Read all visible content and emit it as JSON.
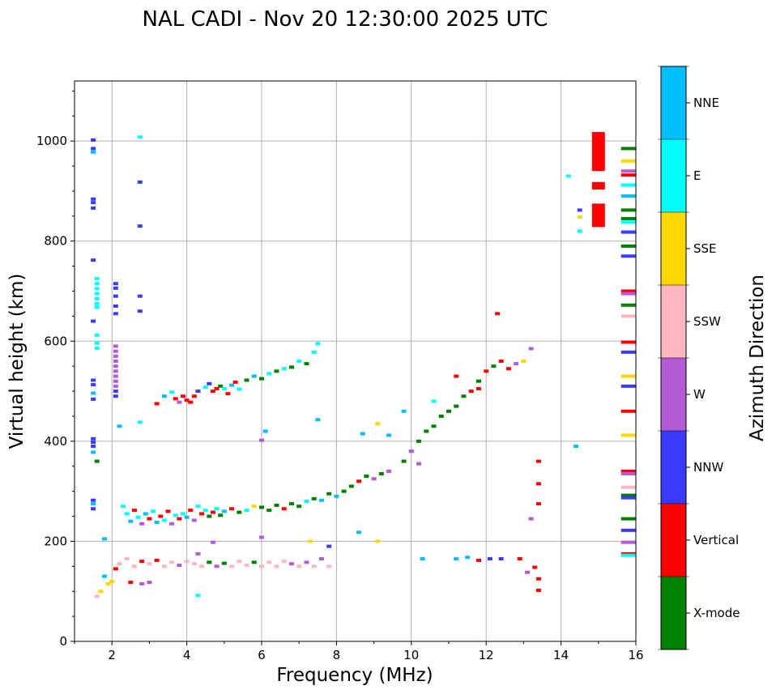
{
  "chart_data": {
    "type": "scatter",
    "title": "NAL CADI - Nov 20 12:30:00 2025 UTC",
    "xlabel": "Frequency (MHz)",
    "ylabel": "Virtual height (km)",
    "xlim": [
      1,
      16
    ],
    "ylim": [
      0,
      1120
    ],
    "xticks": [
      2,
      4,
      6,
      8,
      10,
      12,
      14,
      16
    ],
    "yticks": [
      0,
      200,
      400,
      600,
      800,
      1000
    ],
    "grid": true,
    "colorbar": {
      "label": "Azimuth Direction",
      "categories": [
        {
          "name": "X-mode",
          "color": "#008000"
        },
        {
          "name": "Vertical",
          "color": "#ff0000"
        },
        {
          "name": "NNW",
          "color": "#3a3aff"
        },
        {
          "name": "W",
          "color": "#b45ad6"
        },
        {
          "name": "SSW",
          "color": "#ffb6c1"
        },
        {
          "name": "SSE",
          "color": "#ffd700"
        },
        {
          "name": "E",
          "color": "#00ffff"
        },
        {
          "name": "NNE",
          "color": "#00bfff"
        }
      ]
    },
    "points": [
      [
        1.5,
        1002,
        "NNW"
      ],
      [
        1.5,
        985,
        "NNW"
      ],
      [
        1.5,
        978,
        "NNE"
      ],
      [
        1.5,
        884,
        "NNW"
      ],
      [
        1.5,
        877,
        "NNW"
      ],
      [
        1.5,
        866,
        "NNW"
      ],
      [
        1.5,
        762,
        "NNW"
      ],
      [
        1.6,
        725,
        "E"
      ],
      [
        1.6,
        715,
        "E"
      ],
      [
        1.6,
        705,
        "E"
      ],
      [
        1.6,
        695,
        "E"
      ],
      [
        1.6,
        685,
        "E"
      ],
      [
        1.6,
        675,
        "E"
      ],
      [
        1.6,
        668,
        "E"
      ],
      [
        1.5,
        640,
        "NNW"
      ],
      [
        1.6,
        612,
        "E"
      ],
      [
        1.6,
        596,
        "E"
      ],
      [
        1.6,
        586,
        "E"
      ],
      [
        1.5,
        522,
        "NNW"
      ],
      [
        1.5,
        513,
        "NNW"
      ],
      [
        1.5,
        496,
        "NNE"
      ],
      [
        1.5,
        484,
        "NNW"
      ],
      [
        1.5,
        405,
        "NNW"
      ],
      [
        1.5,
        398,
        "NNW"
      ],
      [
        1.5,
        390,
        "NNW"
      ],
      [
        1.5,
        378,
        "NNE"
      ],
      [
        1.6,
        360,
        "X-mode"
      ],
      [
        1.5,
        282,
        "NNW"
      ],
      [
        1.5,
        275,
        "NNE"
      ],
      [
        1.5,
        265,
        "NNW"
      ],
      [
        2.1,
        715,
        "NNW"
      ],
      [
        2.1,
        706,
        "NNW"
      ],
      [
        2.1,
        690,
        "NNW"
      ],
      [
        2.1,
        670,
        "NNW"
      ],
      [
        2.1,
        655,
        "NNW"
      ],
      [
        2.1,
        590,
        "W"
      ],
      [
        2.1,
        580,
        "W"
      ],
      [
        2.1,
        570,
        "W"
      ],
      [
        2.1,
        560,
        "W"
      ],
      [
        2.1,
        550,
        "W"
      ],
      [
        2.1,
        540,
        "W"
      ],
      [
        2.1,
        530,
        "W"
      ],
      [
        2.1,
        520,
        "W"
      ],
      [
        2.1,
        510,
        "W"
      ],
      [
        2.1,
        500,
        "NNW"
      ],
      [
        2.1,
        490,
        "NNW"
      ],
      [
        2.2,
        430,
        "NNE"
      ],
      [
        2.75,
        1008,
        "E"
      ],
      [
        2.75,
        918,
        "NNW"
      ],
      [
        2.75,
        830,
        "NNW"
      ],
      [
        2.75,
        690,
        "NNW"
      ],
      [
        2.75,
        660,
        "NNW"
      ],
      [
        2.75,
        438,
        "E"
      ],
      [
        3.2,
        475,
        "Vertical"
      ],
      [
        3.4,
        490,
        "NNE"
      ],
      [
        3.6,
        498,
        "E"
      ],
      [
        3.7,
        485,
        "Vertical"
      ],
      [
        3.8,
        478,
        "W"
      ],
      [
        3.9,
        490,
        "Vertical"
      ],
      [
        4.0,
        482,
        "Vertical"
      ],
      [
        4.1,
        478,
        "Vertical"
      ],
      [
        4.2,
        490,
        "Vertical"
      ],
      [
        4.3,
        500,
        "NNW"
      ],
      [
        4.5,
        508,
        "E"
      ],
      [
        4.6,
        515,
        "NNW"
      ],
      [
        4.7,
        500,
        "Vertical"
      ],
      [
        4.8,
        505,
        "Vertical"
      ],
      [
        4.9,
        510,
        "X-mode"
      ],
      [
        5.0,
        505,
        "E"
      ],
      [
        5.1,
        495,
        "Vertical"
      ],
      [
        5.2,
        512,
        "NNE"
      ],
      [
        5.3,
        518,
        "Vertical"
      ],
      [
        5.4,
        504,
        "E"
      ],
      [
        5.6,
        522,
        "X-mode"
      ],
      [
        5.8,
        530,
        "NNE"
      ],
      [
        6.0,
        525,
        "X-mode"
      ],
      [
        6.2,
        535,
        "E"
      ],
      [
        6.4,
        540,
        "X-mode"
      ],
      [
        6.6,
        545,
        "E"
      ],
      [
        6.8,
        548,
        "X-mode"
      ],
      [
        7.0,
        560,
        "E"
      ],
      [
        7.2,
        555,
        "X-mode"
      ],
      [
        7.4,
        578,
        "E"
      ],
      [
        7.5,
        595,
        "E"
      ],
      [
        6.1,
        420,
        "NNE"
      ],
      [
        6.0,
        402,
        "W"
      ],
      [
        7.5,
        443,
        "NNE"
      ],
      [
        2.3,
        270,
        "E"
      ],
      [
        2.4,
        255,
        "E"
      ],
      [
        2.5,
        240,
        "NNE"
      ],
      [
        2.6,
        262,
        "Vertical"
      ],
      [
        2.7,
        248,
        "E"
      ],
      [
        2.8,
        235,
        "W"
      ],
      [
        2.9,
        255,
        "NNE"
      ],
      [
        3.0,
        245,
        "Vertical"
      ],
      [
        3.1,
        260,
        "E"
      ],
      [
        3.2,
        238,
        "NNE"
      ],
      [
        3.3,
        250,
        "Vertical"
      ],
      [
        3.4,
        242,
        "E"
      ],
      [
        3.5,
        260,
        "Vertical"
      ],
      [
        3.6,
        235,
        "W"
      ],
      [
        3.7,
        252,
        "E"
      ],
      [
        3.8,
        245,
        "Vertical"
      ],
      [
        3.9,
        255,
        "E"
      ],
      [
        4.0,
        248,
        "NNE"
      ],
      [
        4.1,
        262,
        "Vertical"
      ],
      [
        4.2,
        242,
        "W"
      ],
      [
        4.3,
        270,
        "E"
      ],
      [
        4.4,
        255,
        "Vertical"
      ],
      [
        4.5,
        262,
        "E"
      ],
      [
        4.6,
        250,
        "X-mode"
      ],
      [
        4.7,
        258,
        "Vertical"
      ],
      [
        4.8,
        265,
        "E"
      ],
      [
        4.9,
        252,
        "X-mode"
      ],
      [
        5.0,
        260,
        "NNE"
      ],
      [
        5.2,
        265,
        "Vertical"
      ],
      [
        5.4,
        258,
        "X-mode"
      ],
      [
        5.6,
        262,
        "E"
      ],
      [
        5.8,
        270,
        "SSE"
      ],
      [
        6.0,
        268,
        "X-mode"
      ],
      [
        6.2,
        262,
        "X-mode"
      ],
      [
        6.4,
        272,
        "X-mode"
      ],
      [
        6.6,
        265,
        "Vertical"
      ],
      [
        6.8,
        275,
        "X-mode"
      ],
      [
        7.0,
        270,
        "X-mode"
      ],
      [
        7.2,
        280,
        "E"
      ],
      [
        7.4,
        285,
        "X-mode"
      ],
      [
        7.6,
        282,
        "NNE"
      ],
      [
        7.8,
        295,
        "X-mode"
      ],
      [
        8.0,
        290,
        "NNE"
      ],
      [
        8.2,
        300,
        "X-mode"
      ],
      [
        8.4,
        310,
        "X-mode"
      ],
      [
        8.6,
        320,
        "Vertical"
      ],
      [
        8.8,
        330,
        "X-mode"
      ],
      [
        9.0,
        325,
        "W"
      ],
      [
        9.2,
        335,
        "X-mode"
      ],
      [
        9.4,
        340,
        "W"
      ],
      [
        9.8,
        360,
        "X-mode"
      ],
      [
        10.0,
        380,
        "NNE"
      ],
      [
        10.2,
        400,
        "X-mode"
      ],
      [
        10.4,
        420,
        "X-mode"
      ],
      [
        10.6,
        430,
        "X-mode"
      ],
      [
        10.8,
        450,
        "X-mode"
      ],
      [
        11.0,
        460,
        "X-mode"
      ],
      [
        11.2,
        470,
        "X-mode"
      ],
      [
        11.4,
        490,
        "X-mode"
      ],
      [
        11.6,
        500,
        "Vertical"
      ],
      [
        11.8,
        520,
        "X-mode"
      ],
      [
        12.0,
        540,
        "Vertical"
      ],
      [
        12.2,
        550,
        "X-mode"
      ],
      [
        12.4,
        560,
        "Vertical"
      ],
      [
        12.6,
        545,
        "Vertical"
      ],
      [
        12.8,
        555,
        "W"
      ],
      [
        13.0,
        560,
        "SSE"
      ],
      [
        13.2,
        585,
        "W"
      ],
      [
        10.6,
        480,
        "E"
      ],
      [
        11.2,
        530,
        "Vertical"
      ],
      [
        11.8,
        505,
        "Vertical"
      ],
      [
        12.3,
        655,
        "Vertical"
      ],
      [
        8.7,
        415,
        "NNE"
      ],
      [
        9.1,
        435,
        "SSE"
      ],
      [
        9.4,
        412,
        "NNE"
      ],
      [
        9.8,
        460,
        "NNE"
      ],
      [
        10.0,
        380,
        "W"
      ],
      [
        10.2,
        355,
        "W"
      ],
      [
        2.0,
        120,
        "SSE"
      ],
      [
        2.1,
        145,
        "Vertical"
      ],
      [
        2.2,
        155,
        "SSW"
      ],
      [
        2.4,
        165,
        "SSW"
      ],
      [
        2.6,
        150,
        "SSW"
      ],
      [
        2.8,
        160,
        "Vertical"
      ],
      [
        3.0,
        155,
        "SSW"
      ],
      [
        3.2,
        162,
        "Vertical"
      ],
      [
        3.4,
        150,
        "SSW"
      ],
      [
        3.6,
        158,
        "SSW"
      ],
      [
        3.8,
        152,
        "W"
      ],
      [
        4.0,
        160,
        "SSW"
      ],
      [
        4.2,
        155,
        "SSW"
      ],
      [
        4.4,
        150,
        "SSW"
      ],
      [
        4.6,
        158,
        "X-mode"
      ],
      [
        4.8,
        150,
        "W"
      ],
      [
        5.0,
        156,
        "X-mode"
      ],
      [
        5.2,
        150,
        "SSW"
      ],
      [
        5.4,
        160,
        "SSW"
      ],
      [
        5.6,
        152,
        "SSW"
      ],
      [
        5.8,
        158,
        "X-mode"
      ],
      [
        6.0,
        150,
        "SSW"
      ],
      [
        6.2,
        158,
        "SSW"
      ],
      [
        6.4,
        150,
        "SSW"
      ],
      [
        6.6,
        160,
        "SSW"
      ],
      [
        6.8,
        155,
        "W"
      ],
      [
        7.0,
        150,
        "SSW"
      ],
      [
        7.2,
        158,
        "W"
      ],
      [
        7.4,
        150,
        "SSW"
      ],
      [
        7.6,
        165,
        "W"
      ],
      [
        7.8,
        150,
        "SSW"
      ],
      [
        2.5,
        118,
        "Vertical"
      ],
      [
        2.8,
        115,
        "W"
      ],
      [
        3.0,
        118,
        "W"
      ],
      [
        4.3,
        92,
        "E"
      ],
      [
        4.3,
        175,
        "W"
      ],
      [
        4.7,
        198,
        "W"
      ],
      [
        6.0,
        208,
        "W"
      ],
      [
        7.3,
        200,
        "SSE"
      ],
      [
        7.8,
        190,
        "NNW"
      ],
      [
        8.6,
        218,
        "NNE"
      ],
      [
        9.1,
        200,
        "SSE"
      ],
      [
        1.7,
        100,
        "SSE"
      ],
      [
        1.6,
        90,
        "SSW"
      ],
      [
        1.8,
        130,
        "NNE"
      ],
      [
        1.9,
        115,
        "SSE"
      ],
      [
        1.8,
        205,
        "NNE"
      ],
      [
        10.3,
        165,
        "NNE"
      ],
      [
        11.2,
        165,
        "NNE"
      ],
      [
        11.5,
        168,
        "NNE"
      ],
      [
        11.8,
        162,
        "Vertical"
      ],
      [
        12.1,
        165,
        "NNW"
      ],
      [
        12.4,
        165,
        "NNW"
      ],
      [
        12.9,
        165,
        "Vertical"
      ],
      [
        13.1,
        138,
        "W"
      ],
      [
        13.3,
        148,
        "Vertical"
      ],
      [
        13.4,
        125,
        "Vertical"
      ],
      [
        13.4,
        102,
        "Vertical"
      ],
      [
        13.4,
        275,
        "Vertical"
      ],
      [
        13.4,
        315,
        "Vertical"
      ],
      [
        13.4,
        360,
        "Vertical"
      ],
      [
        13.2,
        245,
        "W"
      ],
      [
        14.4,
        390,
        "NNE"
      ],
      [
        14.2,
        930,
        "E"
      ],
      [
        14.5,
        862,
        "NNW"
      ],
      [
        14.5,
        848,
        "SSE"
      ],
      [
        14.5,
        820,
        "E"
      ],
      [
        15.8,
        985,
        "X-mode"
      ],
      [
        15.8,
        960,
        "SSE"
      ],
      [
        15.8,
        940,
        "W"
      ],
      [
        15.8,
        932,
        "Vertical"
      ],
      [
        15.8,
        912,
        "E"
      ],
      [
        15.8,
        890,
        "NNE"
      ],
      [
        15.8,
        862,
        "X-mode"
      ],
      [
        15.8,
        845,
        "X-mode"
      ],
      [
        15.8,
        838,
        "E"
      ],
      [
        15.8,
        818,
        "NNW"
      ],
      [
        15.8,
        790,
        "X-mode"
      ],
      [
        15.8,
        770,
        "NNW"
      ],
      [
        15.8,
        700,
        "Vertical"
      ],
      [
        15.8,
        695,
        "W"
      ],
      [
        15.8,
        672,
        "X-mode"
      ],
      [
        15.8,
        650,
        "SSW"
      ],
      [
        15.8,
        598,
        "Vertical"
      ],
      [
        15.8,
        578,
        "NNW"
      ],
      [
        15.8,
        530,
        "SSE"
      ],
      [
        15.8,
        510,
        "NNW"
      ],
      [
        15.8,
        460,
        "Vertical"
      ],
      [
        15.8,
        412,
        "SSE"
      ],
      [
        15.8,
        340,
        "Vertical"
      ],
      [
        15.8,
        335,
        "W"
      ],
      [
        15.8,
        308,
        "SSW"
      ],
      [
        15.8,
        292,
        "X-mode"
      ],
      [
        15.8,
        287,
        "NNW"
      ],
      [
        15.8,
        245,
        "X-mode"
      ],
      [
        15.8,
        222,
        "NNW"
      ],
      [
        15.8,
        198,
        "W"
      ],
      [
        15.8,
        175,
        "Vertical"
      ],
      [
        15.8,
        172,
        "E"
      ]
    ],
    "bars": [
      [
        15.0,
        1018,
        940,
        "Vertical"
      ],
      [
        15.0,
        918,
        903,
        "Vertical"
      ],
      [
        15.0,
        875,
        828,
        "Vertical"
      ]
    ]
  }
}
